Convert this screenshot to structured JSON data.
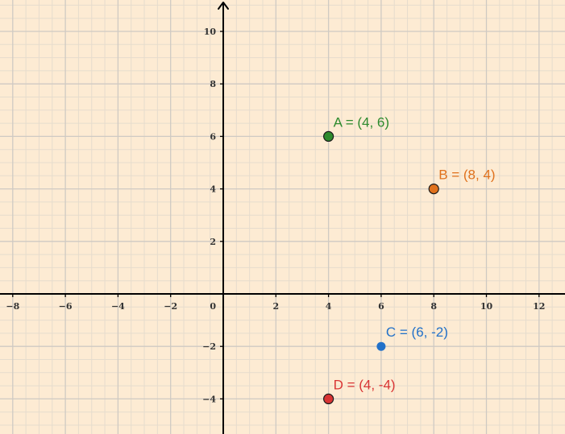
{
  "chart_data": {
    "type": "scatter",
    "title": "",
    "xlabel": "",
    "ylabel": "",
    "xlim": [
      -8.5,
      13
    ],
    "ylim": [
      -5.3,
      11
    ],
    "grid": true,
    "x_ticks": [
      {
        "value": -8,
        "label": "−8"
      },
      {
        "value": -6,
        "label": "−6"
      },
      {
        "value": -4,
        "label": "−4"
      },
      {
        "value": -2,
        "label": "−2"
      },
      {
        "value": 2,
        "label": "2"
      },
      {
        "value": 4,
        "label": "4"
      },
      {
        "value": 6,
        "label": "6"
      },
      {
        "value": 8,
        "label": "8"
      },
      {
        "value": 10,
        "label": "10"
      },
      {
        "value": 12,
        "label": "12"
      }
    ],
    "y_ticks": [
      {
        "value": -4,
        "label": "−4"
      },
      {
        "value": -2,
        "label": "−2"
      },
      {
        "value": 2,
        "label": "2"
      },
      {
        "value": 4,
        "label": "4"
      },
      {
        "value": 6,
        "label": "6"
      },
      {
        "value": 8,
        "label": "8"
      },
      {
        "value": 10,
        "label": "10"
      }
    ],
    "origin_label": "0",
    "points": [
      {
        "label": "A = (4, 6)",
        "x": 4,
        "y": 6,
        "color": "#2e8b2e"
      },
      {
        "label": "B = (8, 4)",
        "x": 8,
        "y": 4,
        "color": "#e0711c"
      },
      {
        "label": "C = (6, -2)",
        "x": 6,
        "y": -2,
        "color": "#2271c9"
      },
      {
        "label": "D = (4, -4)",
        "x": 4,
        "y": -4,
        "color": "#d93434"
      }
    ],
    "colors": {
      "background": "#fdebd3",
      "minor_grid": "#e6dccd",
      "major_grid": "#cfcac3",
      "axis": "#000000"
    }
  }
}
